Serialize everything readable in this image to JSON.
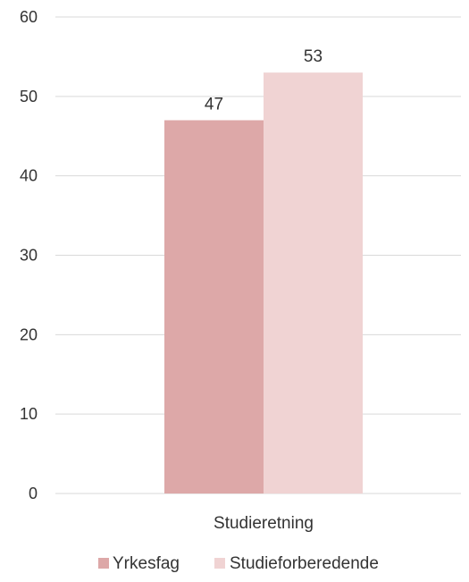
{
  "chart_data": {
    "type": "bar",
    "categories": [
      "Studieretning"
    ],
    "series": [
      {
        "name": "Yrkesfag",
        "values": [
          47
        ],
        "color": "#dda8a8"
      },
      {
        "name": "Studieforberedende",
        "values": [
          53
        ],
        "color": "#f0d3d3"
      }
    ],
    "data_labels": [
      "47",
      "53"
    ],
    "y_ticks": [
      "0",
      "10",
      "20",
      "30",
      "40",
      "50",
      "60"
    ],
    "ylim": [
      0,
      60
    ],
    "grid": true,
    "legend_position": "bottom",
    "title": "",
    "xlabel": "",
    "ylabel": ""
  }
}
